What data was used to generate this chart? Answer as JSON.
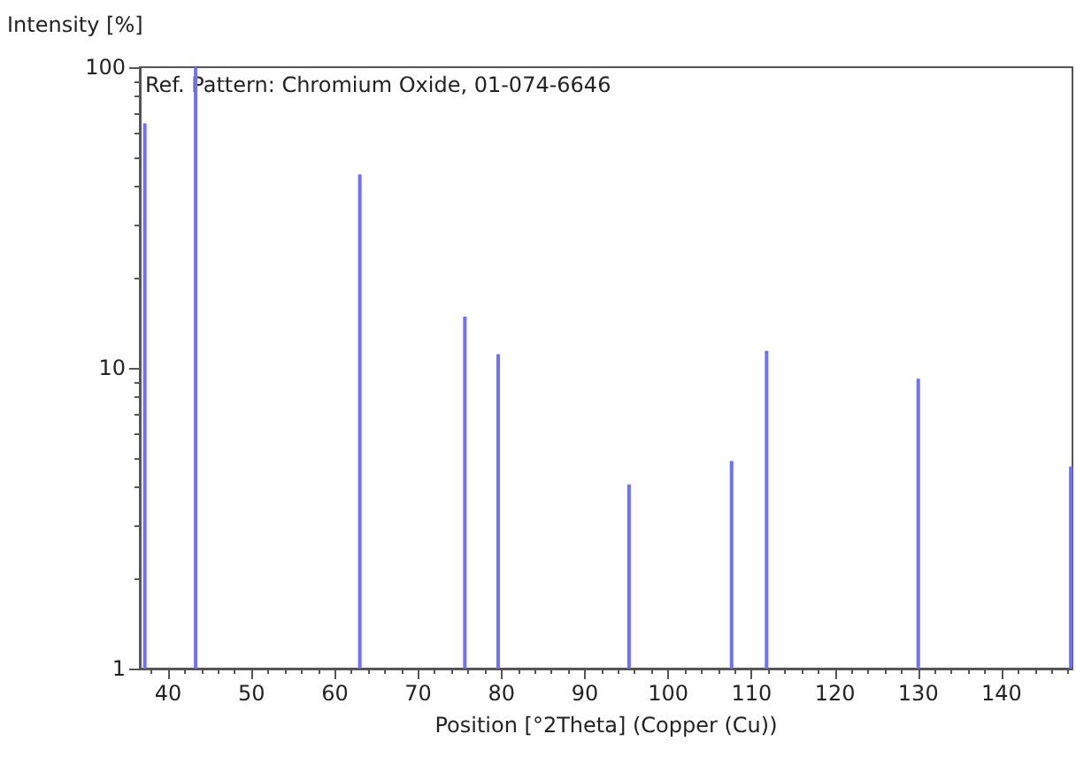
{
  "chart_data": {
    "type": "bar",
    "xlabel": "Position [°2Theta] (Copper (Cu))",
    "ylabel": "Intensity [%]",
    "annotations": [
      "Ref. Pattern: Chromium Oxide, 01-074-6646"
    ],
    "x": [
      37.2,
      43.3,
      63.0,
      75.6,
      79.6,
      95.3,
      107.6,
      111.8,
      130.0,
      148.3
    ],
    "series": [
      {
        "color": "#7070ff",
        "values": [
          65,
          100,
          44,
          14.8,
          11.1,
          4.1,
          4.9,
          11.4,
          9.2,
          4.7
        ]
      }
    ],
    "xlim": [
      36.6,
      148.5
    ],
    "xticks": [
      40,
      50,
      60,
      70,
      80,
      90,
      100,
      110,
      120,
      130,
      140
    ],
    "ylim": [
      1,
      100
    ],
    "yticks": [
      1,
      10,
      100
    ],
    "log": "y",
    "grid": false
  }
}
